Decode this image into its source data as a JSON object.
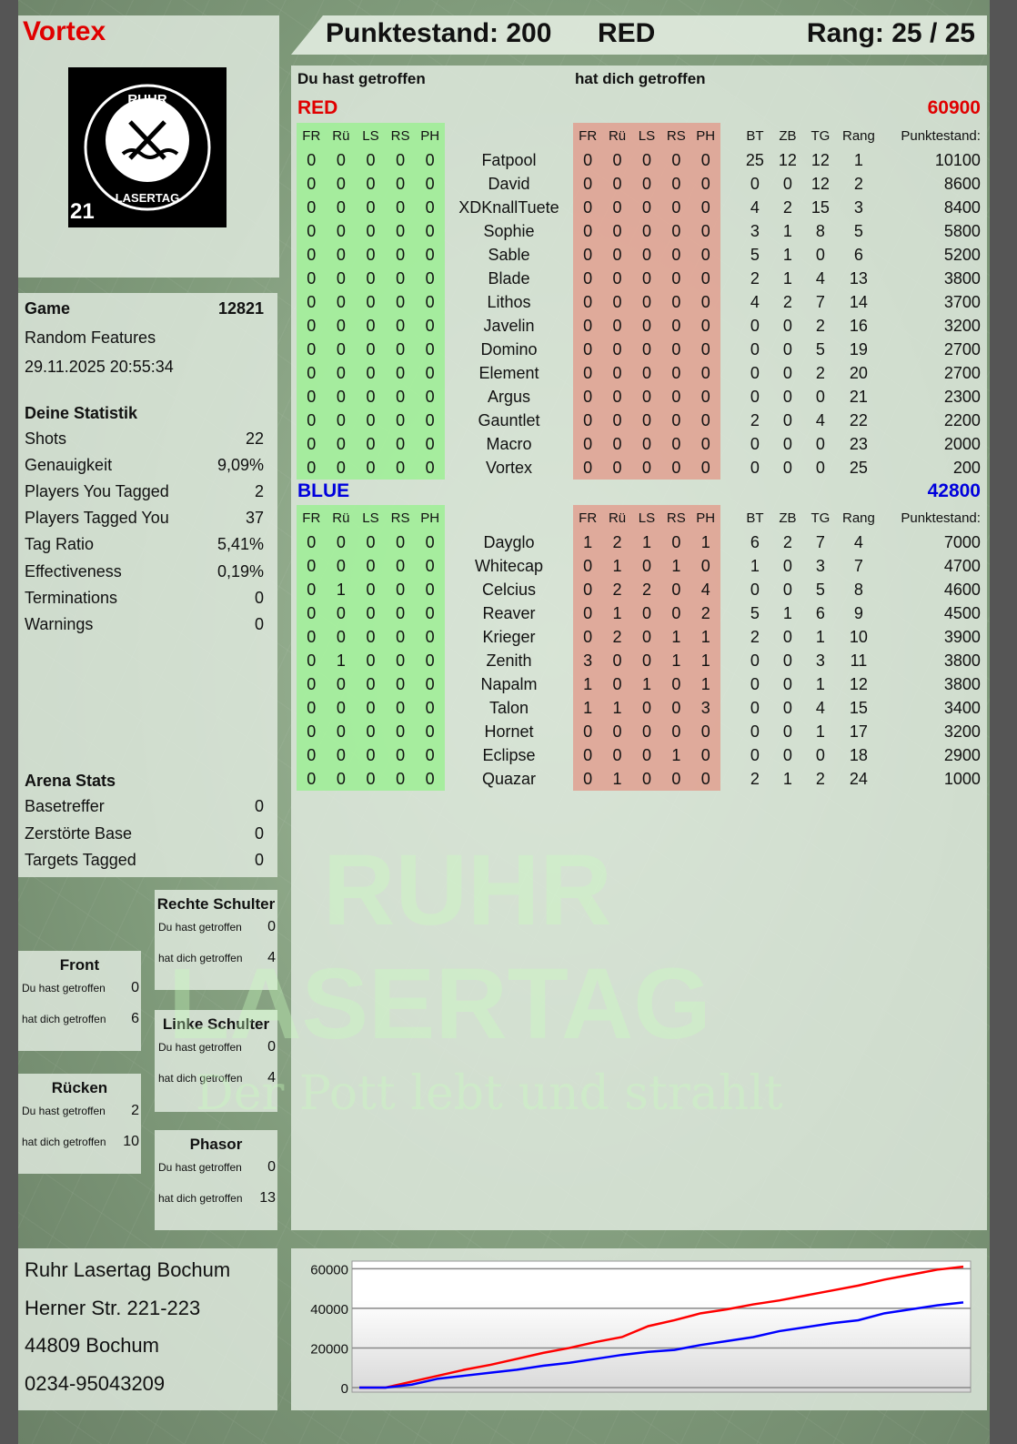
{
  "player": {
    "name": "Vortex"
  },
  "header": {
    "score_label": "Punktestand: 200",
    "team": "RED",
    "rank_label": "Rang: 25 / 25"
  },
  "logo": {
    "top_text": "RUHR",
    "bottom_text": "LASERTAG",
    "number": "21"
  },
  "game": {
    "label": "Game",
    "id": "12821",
    "mode": "Random Features",
    "datetime": "29.11.2025 20:55:34"
  },
  "stats": {
    "title": "Deine Statistik",
    "items": [
      {
        "label": "Shots",
        "value": "22"
      },
      {
        "label": "Genauigkeit",
        "value": "9,09%"
      },
      {
        "label": "Players You Tagged",
        "value": "2"
      },
      {
        "label": "Players Tagged You",
        "value": "37"
      },
      {
        "label": "Tag Ratio",
        "value": "5,41%"
      },
      {
        "label": "Effectiveness",
        "value": "0,19%"
      },
      {
        "label": "Terminations",
        "value": "0"
      },
      {
        "label": "Warnings",
        "value": "0"
      }
    ]
  },
  "arena": {
    "title": "Arena Stats",
    "items": [
      {
        "label": "Basetreffer",
        "value": "0"
      },
      {
        "label": "Zerstörte Base",
        "value": "0"
      },
      {
        "label": "Targets Tagged",
        "value": "0"
      }
    ]
  },
  "zones": [
    {
      "title": "Rechte Schulter",
      "hit_label": "Du hast getroffen",
      "hit": "0",
      "got_label": "hat dich getroffen",
      "got": "4"
    },
    {
      "title": "Front",
      "hit_label": "Du hast getroffen",
      "hit": "0",
      "got_label": "hat dich getroffen",
      "got": "6"
    },
    {
      "title": "Linke Schulter",
      "hit_label": "Du hast getroffen",
      "hit": "0",
      "got_label": "hat dich getroffen",
      "got": "4"
    },
    {
      "title": "Rücken",
      "hit_label": "Du hast getroffen",
      "hit": "2",
      "got_label": "hat dich getroffen",
      "got": "10"
    },
    {
      "title": "Phasor",
      "hit_label": "Du hast getroffen",
      "hit": "0",
      "got_label": "hat dich getroffen",
      "got": "13"
    }
  ],
  "address": {
    "lines": [
      "Ruhr Lasertag Bochum",
      "Herner Str. 221-223",
      "44809 Bochum",
      "0234-95043209"
    ]
  },
  "table": {
    "you_hit_label": "Du hast getroffen",
    "hit_you_label": "hat dich getroffen",
    "columns": [
      "FR",
      "Rü",
      "LS",
      "RS",
      "PH",
      "",
      "FR",
      "Rü",
      "LS",
      "RS",
      "PH",
      "",
      "BT",
      "ZB",
      "TG",
      "Rang",
      "Punktestand:"
    ],
    "teams": [
      {
        "name": "RED",
        "score": "60900",
        "color": "#e00000",
        "rows": [
          [
            "Fatpool",
            [
              0,
              0,
              0,
              0,
              0
            ],
            [
              0,
              0,
              0,
              0,
              0
            ],
            25,
            12,
            12,
            1,
            10100
          ],
          [
            "David",
            [
              0,
              0,
              0,
              0,
              0
            ],
            [
              0,
              0,
              0,
              0,
              0
            ],
            0,
            0,
            12,
            2,
            8600
          ],
          [
            "XDKnallTuete",
            [
              0,
              0,
              0,
              0,
              0
            ],
            [
              0,
              0,
              0,
              0,
              0
            ],
            4,
            2,
            15,
            3,
            8400
          ],
          [
            "Sophie",
            [
              0,
              0,
              0,
              0,
              0
            ],
            [
              0,
              0,
              0,
              0,
              0
            ],
            3,
            1,
            8,
            5,
            5800
          ],
          [
            "Sable",
            [
              0,
              0,
              0,
              0,
              0
            ],
            [
              0,
              0,
              0,
              0,
              0
            ],
            5,
            1,
            0,
            6,
            5200
          ],
          [
            "Blade",
            [
              0,
              0,
              0,
              0,
              0
            ],
            [
              0,
              0,
              0,
              0,
              0
            ],
            2,
            1,
            4,
            13,
            3800
          ],
          [
            "Lithos",
            [
              0,
              0,
              0,
              0,
              0
            ],
            [
              0,
              0,
              0,
              0,
              0
            ],
            4,
            2,
            7,
            14,
            3700
          ],
          [
            "Javelin",
            [
              0,
              0,
              0,
              0,
              0
            ],
            [
              0,
              0,
              0,
              0,
              0
            ],
            0,
            0,
            2,
            16,
            3200
          ],
          [
            "Domino",
            [
              0,
              0,
              0,
              0,
              0
            ],
            [
              0,
              0,
              0,
              0,
              0
            ],
            0,
            0,
            5,
            19,
            2700
          ],
          [
            "Element",
            [
              0,
              0,
              0,
              0,
              0
            ],
            [
              0,
              0,
              0,
              0,
              0
            ],
            0,
            0,
            2,
            20,
            2700
          ],
          [
            "Argus",
            [
              0,
              0,
              0,
              0,
              0
            ],
            [
              0,
              0,
              0,
              0,
              0
            ],
            0,
            0,
            0,
            21,
            2300
          ],
          [
            "Gauntlet",
            [
              0,
              0,
              0,
              0,
              0
            ],
            [
              0,
              0,
              0,
              0,
              0
            ],
            2,
            0,
            4,
            22,
            2200
          ],
          [
            "Macro",
            [
              0,
              0,
              0,
              0,
              0
            ],
            [
              0,
              0,
              0,
              0,
              0
            ],
            0,
            0,
            0,
            23,
            2000
          ],
          [
            "Vortex",
            [
              0,
              0,
              0,
              0,
              0
            ],
            [
              0,
              0,
              0,
              0,
              0
            ],
            0,
            0,
            0,
            25,
            200
          ]
        ]
      },
      {
        "name": "BLUE",
        "score": "42800",
        "color": "#0000dd",
        "rows": [
          [
            "Dayglo",
            [
              0,
              0,
              0,
              0,
              0
            ],
            [
              1,
              2,
              1,
              0,
              1
            ],
            6,
            2,
            7,
            4,
            7000
          ],
          [
            "Whitecap",
            [
              0,
              0,
              0,
              0,
              0
            ],
            [
              0,
              1,
              0,
              1,
              0
            ],
            1,
            0,
            3,
            7,
            4700
          ],
          [
            "Celcius",
            [
              0,
              1,
              0,
              0,
              0
            ],
            [
              0,
              2,
              2,
              0,
              4
            ],
            0,
            0,
            5,
            8,
            4600
          ],
          [
            "Reaver",
            [
              0,
              0,
              0,
              0,
              0
            ],
            [
              0,
              1,
              0,
              0,
              2
            ],
            5,
            1,
            6,
            9,
            4500
          ],
          [
            "Krieger",
            [
              0,
              0,
              0,
              0,
              0
            ],
            [
              0,
              2,
              0,
              1,
              1
            ],
            2,
            0,
            1,
            10,
            3900
          ],
          [
            "Zenith",
            [
              0,
              1,
              0,
              0,
              0
            ],
            [
              3,
              0,
              0,
              1,
              1
            ],
            0,
            0,
            3,
            11,
            3800
          ],
          [
            "Napalm",
            [
              0,
              0,
              0,
              0,
              0
            ],
            [
              1,
              0,
              1,
              0,
              1
            ],
            0,
            0,
            1,
            12,
            3800
          ],
          [
            "Talon",
            [
              0,
              0,
              0,
              0,
              0
            ],
            [
              1,
              1,
              0,
              0,
              3
            ],
            0,
            0,
            4,
            15,
            3400
          ],
          [
            "Hornet",
            [
              0,
              0,
              0,
              0,
              0
            ],
            [
              0,
              0,
              0,
              0,
              0
            ],
            0,
            0,
            1,
            17,
            3200
          ],
          [
            "Eclipse",
            [
              0,
              0,
              0,
              0,
              0
            ],
            [
              0,
              0,
              0,
              1,
              0
            ],
            0,
            0,
            0,
            18,
            2900
          ],
          [
            "Quazar",
            [
              0,
              0,
              0,
              0,
              0
            ],
            [
              0,
              1,
              0,
              0,
              0
            ],
            2,
            1,
            2,
            24,
            1000
          ]
        ]
      }
    ]
  },
  "watermark": {
    "line1": "RUHR",
    "line2": "LASERTAG",
    "slogan": "Der Pott lebt und strahlt"
  },
  "chart_data": {
    "type": "line",
    "ylim": [
      0,
      62000
    ],
    "yticks": [
      "0",
      "20000",
      "40000",
      "60000"
    ],
    "grid": true,
    "series": [
      {
        "color": "#ff0000",
        "values": [
          0,
          0,
          3000,
          6000,
          9000,
          11500,
          14500,
          17500,
          20000,
          23000,
          25500,
          31000,
          34000,
          37500,
          39500,
          42000,
          44000,
          46500,
          49000,
          51500,
          54500,
          57000,
          59500,
          61000
        ]
      },
      {
        "color": "#0000ff",
        "values": [
          0,
          0,
          1500,
          4500,
          6000,
          7500,
          9000,
          11000,
          12500,
          14500,
          16500,
          18000,
          19000,
          21500,
          23500,
          25500,
          28500,
          30500,
          32500,
          34000,
          37500,
          39500,
          41500,
          43000
        ]
      }
    ]
  }
}
